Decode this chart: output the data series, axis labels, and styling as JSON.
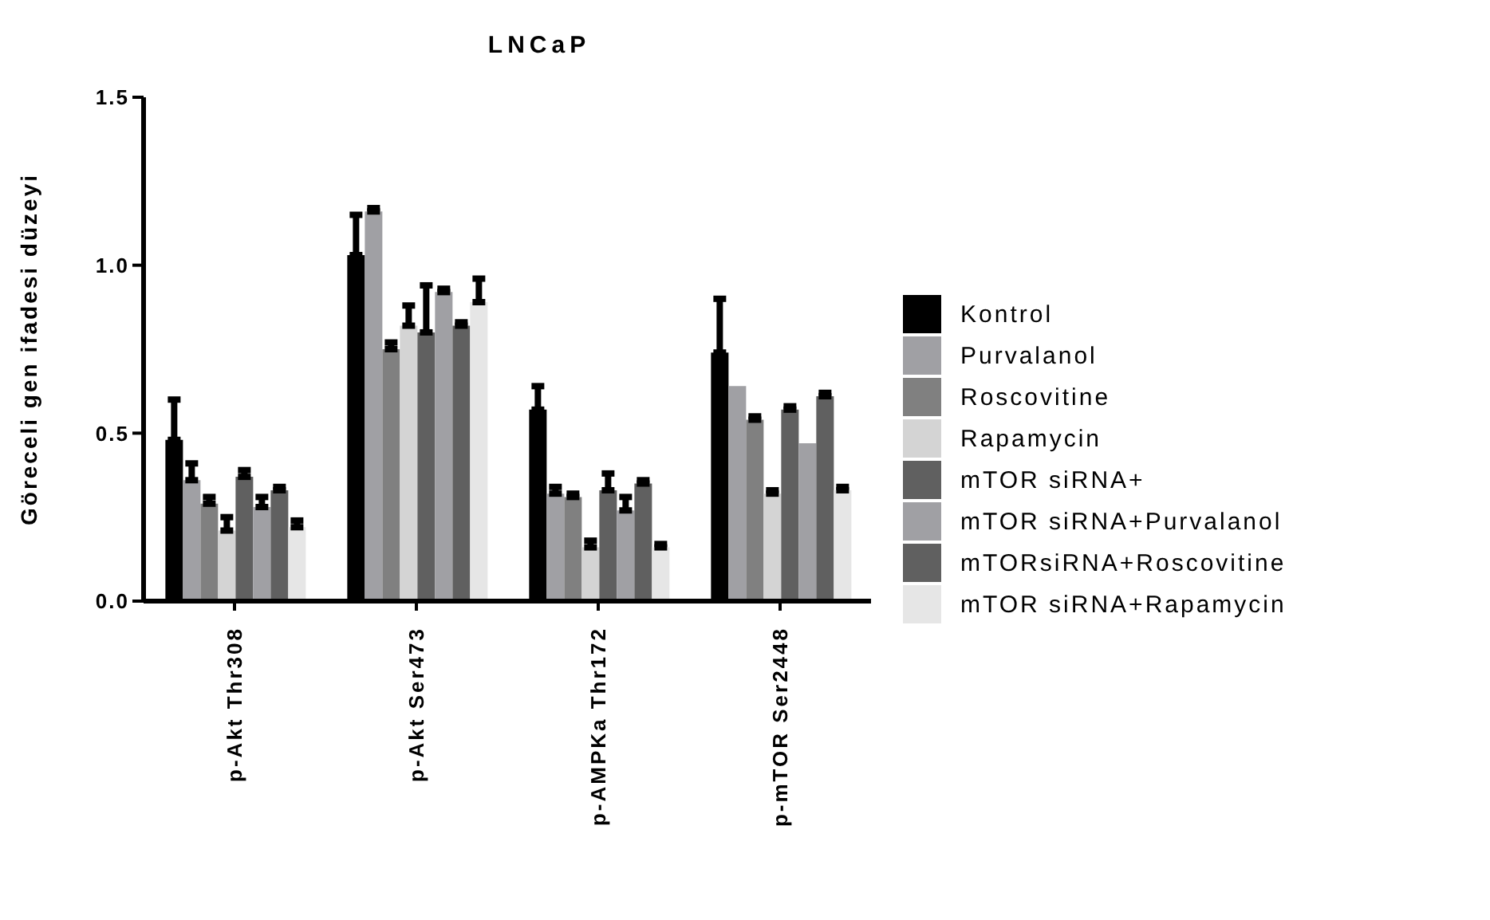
{
  "chart_data": {
    "type": "bar",
    "title": "LNCaP",
    "ylabel": "Göreceli gen ifadesi düzeyi",
    "categories": [
      "p-Akt Thr308",
      "p-Akt Ser473",
      "p-AMPKa Thr172",
      "p-mTOR Ser2448"
    ],
    "ylim": [
      0,
      1.5
    ],
    "yticks": [
      {
        "value": 0,
        "label": "0.0"
      },
      {
        "value": 0.5,
        "label": "0.5"
      },
      {
        "value": 1,
        "label": "1.0"
      },
      {
        "value": 1.5,
        "label": "1.5"
      }
    ],
    "grid": false,
    "legend": "right",
    "series": [
      {
        "name": "Kontrol",
        "color": "#000000",
        "values": [
          0.48,
          1.03,
          0.57,
          0.74
        ],
        "errors": [
          [
            0.48,
            0.6
          ],
          [
            1.03,
            1.15
          ],
          [
            0.57,
            0.64
          ],
          [
            0.74,
            0.9
          ]
        ]
      },
      {
        "name": "Purvalanol",
        "color": "#a0a0a4",
        "values": [
          0.36,
          1.16,
          0.32,
          0.64
        ],
        "errors": [
          [
            0.36,
            0.41
          ],
          [
            1.16,
            1.17
          ],
          [
            0.32,
            0.34
          ],
          null
        ]
      },
      {
        "name": "Roscovitine",
        "color": "#808080",
        "values": [
          0.29,
          0.75,
          0.31,
          0.54
        ],
        "errors": [
          [
            0.29,
            0.31
          ],
          [
            0.75,
            0.77
          ],
          [
            0.31,
            0.32
          ],
          [
            0.54,
            0.55
          ]
        ]
      },
      {
        "name": "Rapamycin",
        "color": "#d4d4d4",
        "values": [
          0.21,
          0.82,
          0.16,
          0.32
        ],
        "errors": [
          [
            0.21,
            0.25
          ],
          [
            0.82,
            0.88
          ],
          [
            0.16,
            0.18
          ],
          [
            0.32,
            0.33
          ]
        ]
      },
      {
        "name": "mTOR siRNA+",
        "color": "#606060",
        "values": [
          0.37,
          0.8,
          0.33,
          0.57
        ],
        "errors": [
          [
            0.37,
            0.39
          ],
          [
            0.8,
            0.94
          ],
          [
            0.33,
            0.38
          ],
          [
            0.57,
            0.58
          ]
        ]
      },
      {
        "name": "mTOR siRNA+Purvalanol",
        "color": "#a0a0a4",
        "values": [
          0.28,
          0.92,
          0.27,
          0.47
        ],
        "errors": [
          [
            0.28,
            0.31
          ],
          [
            0.92,
            0.93
          ],
          [
            0.27,
            0.31
          ],
          null
        ]
      },
      {
        "name": "mTORsiRNA+Roscovitine",
        "color": "#606060",
        "values": [
          0.33,
          0.82,
          0.35,
          0.61
        ],
        "errors": [
          [
            0.33,
            0.34
          ],
          [
            0.82,
            0.83
          ],
          [
            0.35,
            0.36
          ],
          [
            0.61,
            0.62
          ]
        ]
      },
      {
        "name": "mTOR siRNA+Rapamycin",
        "color": "#e6e6e6",
        "values": [
          0.22,
          0.89,
          0.16,
          0.33
        ],
        "errors": [
          [
            0.22,
            0.24
          ],
          [
            0.89,
            0.96
          ],
          [
            0.16,
            0.17
          ],
          [
            0.33,
            0.34
          ]
        ]
      }
    ]
  }
}
